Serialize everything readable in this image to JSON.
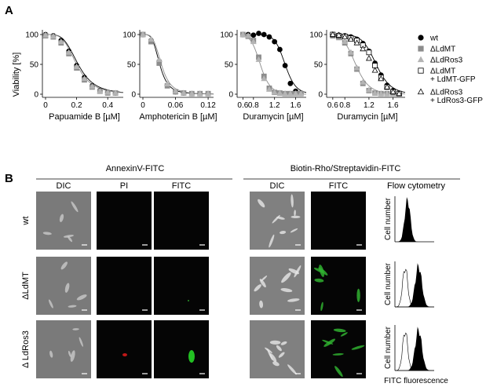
{
  "panelA": {
    "letter": "A",
    "y_axis_label": "Viability [%]",
    "yticks": [
      "100",
      "50",
      "0"
    ],
    "legend": [
      {
        "label": "wt",
        "marker": "circle-filled",
        "color": "#000000"
      },
      {
        "label": "ΔLdMT",
        "marker": "square-filled",
        "color": "#8c8c8c"
      },
      {
        "label": "ΔLdRos3",
        "marker": "triangle-filled",
        "color": "#b4b4b4"
      },
      {
        "label": "ΔLdMT",
        "label2": "+ LdMT-GFP",
        "marker": "square-open",
        "color": "#000000"
      },
      {
        "label": "ΔLdRos3",
        "label2": "+ LdRos3-GFP",
        "marker": "triangle-open",
        "color": "#000000"
      }
    ]
  },
  "chart_data": [
    {
      "type": "scatter",
      "xlabel": "Papuamide B [µM]",
      "ylabel": "Viability [%]",
      "xticks": [
        "0",
        "0.2",
        "0.4"
      ],
      "xlim": [
        0,
        0.5
      ],
      "ylim": [
        0,
        110
      ],
      "series": [
        {
          "marker": "circle-filled",
          "x": [
            0,
            0.05,
            0.1,
            0.15,
            0.2,
            0.25,
            0.3,
            0.35,
            0.4,
            0.45
          ],
          "y": [
            100,
            98,
            90,
            72,
            48,
            28,
            14,
            6,
            3,
            2
          ]
        },
        {
          "marker": "square-filled",
          "x": [
            0,
            0.05,
            0.1,
            0.15,
            0.2,
            0.25,
            0.3,
            0.35,
            0.4,
            0.45
          ],
          "y": [
            98,
            96,
            86,
            68,
            44,
            24,
            12,
            5,
            2,
            2
          ]
        },
        {
          "marker": "triangle-filled",
          "x": [
            0,
            0.05,
            0.1,
            0.15,
            0.2,
            0.25,
            0.3,
            0.35,
            0.4,
            0.45
          ],
          "y": [
            99,
            97,
            88,
            70,
            46,
            26,
            13,
            5,
            3,
            2
          ]
        }
      ],
      "curves": [
        {
          "ic50": 0.21,
          "hill": 4,
          "color": "#000000"
        },
        {
          "ic50": 0.2,
          "hill": 4,
          "color": "#8c8c8c"
        }
      ]
    },
    {
      "type": "scatter",
      "xlabel": "Amphotericin B [µM]",
      "ylabel": "",
      "xticks": [
        "0",
        "0.06",
        "0.12"
      ],
      "xlim": [
        0,
        0.13
      ],
      "ylim": [
        0,
        110
      ],
      "series": [
        {
          "marker": "circle-filled",
          "x": [
            0,
            0.015,
            0.03,
            0.045,
            0.06,
            0.075,
            0.09,
            0.105,
            0.12
          ],
          "y": [
            100,
            90,
            55,
            15,
            4,
            2,
            1,
            1,
            1
          ]
        },
        {
          "marker": "square-filled",
          "x": [
            0,
            0.015,
            0.03,
            0.045,
            0.06,
            0.075,
            0.09,
            0.105,
            0.12
          ],
          "y": [
            100,
            88,
            52,
            14,
            4,
            2,
            1,
            1,
            1
          ]
        },
        {
          "marker": "triangle-filled",
          "x": [
            0,
            0.015,
            0.03,
            0.045,
            0.06,
            0.075,
            0.09,
            0.105,
            0.12
          ],
          "y": [
            100,
            92,
            58,
            17,
            5,
            2,
            1,
            1,
            1
          ]
        }
      ],
      "curves": [
        {
          "ic50": 0.031,
          "hill": 4,
          "color": "#000000"
        },
        {
          "ic50": 0.034,
          "hill": 4,
          "color": "#8c8c8c"
        }
      ]
    },
    {
      "type": "scatter",
      "xlabel": "Duramycin [µM]",
      "ylabel": "",
      "xticks": [
        "0.6",
        "0.8",
        "1.2",
        "1.6"
      ],
      "xlim": [
        0.55,
        1.8
      ],
      "ylim": [
        0,
        110
      ],
      "series": [
        {
          "marker": "circle-filled",
          "x": [
            0.6,
            0.7,
            0.8,
            0.9,
            1.0,
            1.1,
            1.2,
            1.3,
            1.4,
            1.5,
            1.6,
            1.7
          ],
          "y": [
            100,
            100,
            99,
            102,
            100,
            96,
            88,
            75,
            48,
            18,
            5,
            2
          ]
        },
        {
          "marker": "square-filled",
          "x": [
            0.6,
            0.7,
            0.8,
            0.9,
            1.0,
            1.1,
            1.2,
            1.3,
            1.4,
            1.5,
            1.6,
            1.7
          ],
          "y": [
            100,
            97,
            90,
            62,
            30,
            10,
            3,
            2,
            1,
            1,
            1,
            1
          ]
        },
        {
          "marker": "triangle-filled",
          "x": [
            0.6,
            0.7,
            0.8,
            0.9,
            1.0,
            1.1,
            1.2,
            1.3,
            1.4,
            1.5,
            1.6,
            1.7
          ],
          "y": [
            100,
            98,
            88,
            58,
            26,
            8,
            3,
            2,
            1,
            1,
            1,
            1
          ]
        }
      ],
      "curves": [
        {
          "ic50": 1.4,
          "hill": 14,
          "color": "#000000"
        },
        {
          "ic50": 0.93,
          "hill": 10,
          "color": "#8c8c8c"
        }
      ]
    },
    {
      "type": "scatter",
      "xlabel": "Duramycin [µM]",
      "ylabel": "",
      "xticks": [
        "0.6",
        "0.8",
        "1.2",
        "1.6"
      ],
      "xlim": [
        0.55,
        1.8
      ],
      "ylim": [
        0,
        110
      ],
      "series": [
        {
          "marker": "circle-filled",
          "x": [
            0.6,
            0.7,
            0.8,
            0.9,
            1.0,
            1.1,
            1.2,
            1.3,
            1.4,
            1.5,
            1.6,
            1.7
          ],
          "y": [
            100,
            99,
            98,
            96,
            92,
            85,
            72,
            52,
            32,
            15,
            6,
            2
          ]
        },
        {
          "marker": "square-filled",
          "x": [
            0.6,
            0.7,
            0.8,
            0.9,
            1.0,
            1.1,
            1.2,
            1.3,
            1.4,
            1.5,
            1.6,
            1.7
          ],
          "y": [
            98,
            95,
            86,
            68,
            42,
            18,
            6,
            2,
            1,
            1,
            1,
            1
          ]
        },
        {
          "marker": "triangle-filled",
          "x": [
            0.6,
            0.7,
            0.8,
            0.9,
            1.0,
            1.1,
            1.2,
            1.3,
            1.4,
            1.5,
            1.6,
            1.7
          ],
          "y": [
            99,
            96,
            88,
            70,
            44,
            20,
            7,
            2,
            1,
            1,
            1,
            1
          ]
        },
        {
          "marker": "square-open",
          "x": [
            0.6,
            0.7,
            0.8,
            0.9,
            1.0,
            1.1,
            1.2,
            1.3,
            1.4,
            1.5,
            1.6,
            1.7
          ],
          "y": [
            100,
            98,
            97,
            94,
            90,
            82,
            70,
            48,
            28,
            12,
            4,
            1
          ]
        },
        {
          "marker": "triangle-open",
          "x": [
            0.6,
            0.7,
            0.8,
            0.9,
            1.0,
            1.1,
            1.2,
            1.3,
            1.4,
            1.5,
            1.6,
            1.7
          ],
          "y": [
            100,
            99,
            96,
            92,
            86,
            76,
            60,
            40,
            26,
            12,
            4,
            1
          ]
        }
      ],
      "curves": [
        {
          "ic50": 1.32,
          "hill": 11,
          "color": "#000000"
        },
        {
          "ic50": 0.98,
          "hill": 9,
          "color": "#8c8c8c"
        }
      ]
    }
  ],
  "panelB": {
    "letter": "B",
    "group1_title": "AnnexinV-FITC",
    "group2_title": "Biotin-Rho/Streptavidin-FITC",
    "group1_columns": [
      "DIC",
      "PI",
      "FITC"
    ],
    "group2_columns": [
      "DIC",
      "FITC",
      "Flow cytometry"
    ],
    "rows": [
      "wt",
      "ΔLdMT",
      "Δ LdRos3"
    ],
    "flow_ylabel": "Cell number",
    "flow_xlabel": "FITC fluorescence"
  }
}
